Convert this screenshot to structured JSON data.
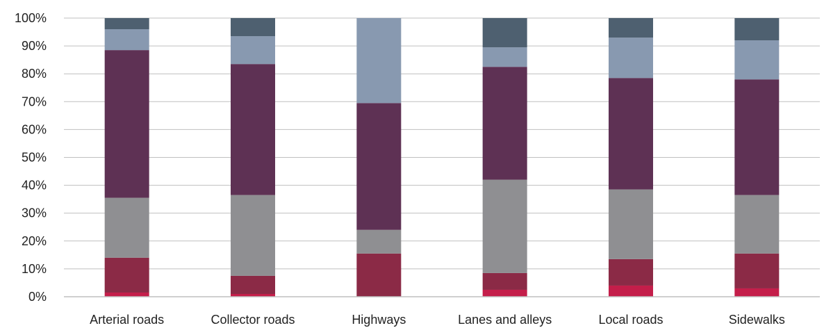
{
  "chart_data": {
    "type": "bar",
    "stacked": true,
    "categories": [
      "Arterial roads",
      "Collector roads",
      "Highways",
      "Lanes and alleys",
      "Local roads",
      "Sidewalks"
    ],
    "yticks": [
      "0%",
      "10%",
      "20%",
      "30%",
      "40%",
      "50%",
      "60%",
      "70%",
      "80%",
      "90%",
      "100%"
    ],
    "ylim": [
      0,
      100
    ],
    "grid": true,
    "legend": "none",
    "series": [
      {
        "color": "#c41e4a",
        "values": [
          1.5,
          1.0,
          0.0,
          2.5,
          4.0,
          3.0
        ]
      },
      {
        "color": "#8b2a46",
        "values": [
          12.5,
          6.5,
          15.5,
          6.0,
          9.5,
          12.5
        ]
      },
      {
        "color": "#8f8f92",
        "values": [
          21.5,
          29.0,
          8.5,
          33.5,
          25.0,
          21.0
        ]
      },
      {
        "color": "#5e3154",
        "values": [
          53.0,
          47.0,
          45.5,
          40.5,
          40.0,
          41.5
        ]
      },
      {
        "color": "#8899b0",
        "values": [
          7.5,
          10.0,
          30.5,
          7.0,
          14.5,
          14.0
        ]
      },
      {
        "color": "#4e6070",
        "values": [
          4.0,
          6.5,
          0.0,
          10.5,
          7.0,
          8.0
        ]
      }
    ]
  }
}
